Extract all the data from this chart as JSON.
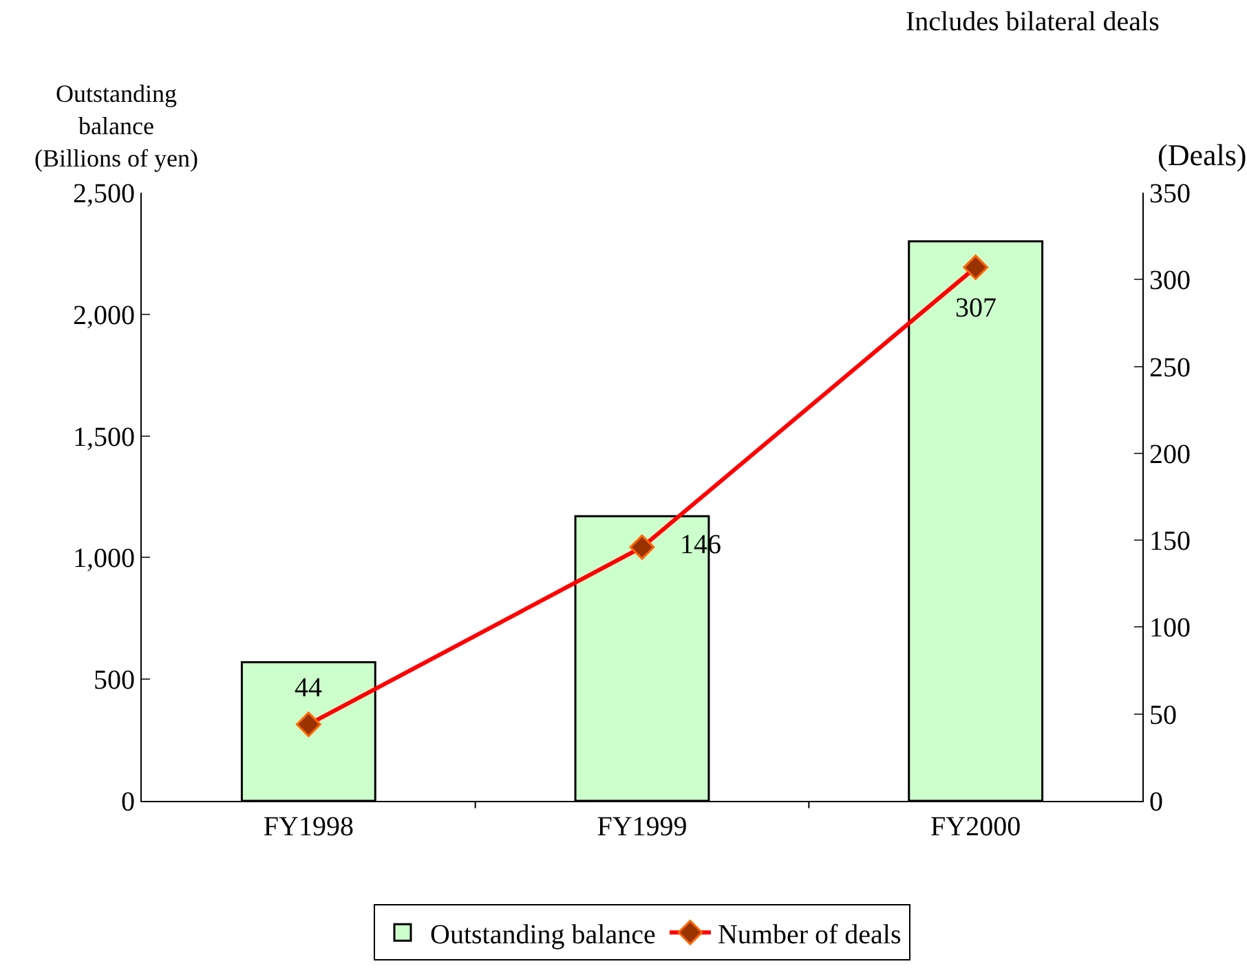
{
  "chart_data": {
    "type": "bar",
    "categories": [
      "FY1998",
      "FY1999",
      "FY2000"
    ],
    "ylabel": "Outstanding\nbalance\n(Billions of yen)",
    "y2label": "(Deals)",
    "annotations": [
      "Includes bilateral deals"
    ],
    "ylim": [
      0,
      2500
    ],
    "yticks": [
      {
        "value": 0,
        "label": "0"
      },
      {
        "value": 500,
        "label": "500"
      },
      {
        "value": 1000,
        "label": "1,000"
      },
      {
        "value": 1500,
        "label": "1,500"
      },
      {
        "value": 2000,
        "label": "2,000"
      },
      {
        "value": 2500,
        "label": "2,500"
      }
    ],
    "y2lim": [
      0,
      350
    ],
    "y2ticks": [
      0,
      50,
      100,
      150,
      200,
      250,
      300,
      350
    ],
    "legend": "bottom",
    "series": [
      {
        "name": "Outstanding balance",
        "color": "#ccffcc",
        "values": [
          570,
          1170,
          2300
        ]
      },
      {
        "name": "Number of deals",
        "type": "line",
        "axis": "y2",
        "color": "#ff0000",
        "marker": "diamond",
        "line_style": "solid",
        "values": [
          44,
          146,
          307
        ],
        "value_labels": [
          "44",
          "146",
          "307"
        ]
      }
    ]
  }
}
